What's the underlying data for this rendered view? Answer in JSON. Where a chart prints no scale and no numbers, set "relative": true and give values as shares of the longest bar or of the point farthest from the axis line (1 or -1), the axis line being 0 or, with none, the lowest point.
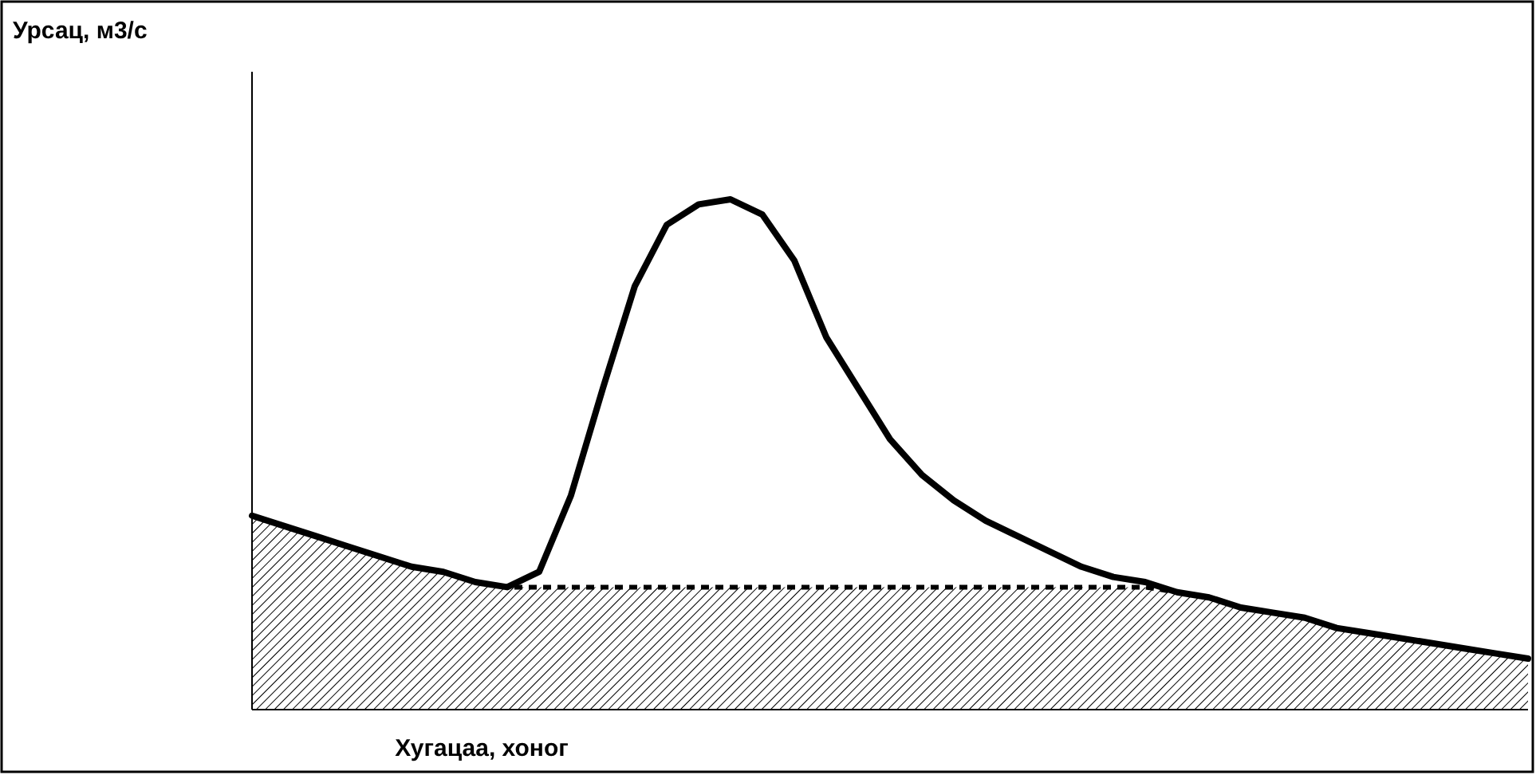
{
  "chart_data": {
    "type": "line",
    "relative": true,
    "xlabel": "Хугацаа, хоног",
    "annotations": [
      "Урсац, м3/с"
    ],
    "grid": false,
    "marker": "none",
    "categories": [
      null,
      null,
      null,
      null,
      null,
      null,
      null,
      null,
      null,
      null,
      null,
      null,
      null,
      null,
      null,
      null,
      null,
      null,
      null,
      null,
      null,
      null,
      null,
      null,
      null,
      null,
      null,
      null,
      null,
      null,
      null,
      null,
      null,
      null,
      null,
      null,
      null,
      null,
      null,
      null,
      null
    ],
    "series": [
      {
        "type": "area",
        "color": "#000000",
        "line_style": "dotted",
        "values": [
          0.38,
          0.36,
          0.34,
          0.32,
          0.3,
          0.28,
          0.27,
          0.25,
          0.24,
          0.24,
          0.24,
          0.24,
          0.24,
          0.24,
          0.24,
          0.24,
          0.24,
          0.24,
          0.24,
          0.24,
          0.24,
          0.24,
          0.24,
          0.24,
          0.24,
          0.24,
          0.24,
          0.24,
          0.24,
          0.23,
          0.22,
          0.2,
          0.19,
          0.18,
          0.16,
          0.15,
          0.14,
          0.13,
          0.12,
          0.11,
          0.1
        ]
      },
      {
        "color": "#000000",
        "line_style": "solid",
        "values": [
          0.38,
          0.36,
          0.34,
          0.32,
          0.3,
          0.28,
          0.27,
          0.25,
          0.24,
          0.27,
          0.42,
          0.63,
          0.83,
          0.95,
          0.99,
          1,
          0.97,
          0.88,
          0.73,
          0.63,
          0.53,
          0.46,
          0.41,
          0.37,
          0.34,
          0.31,
          0.28,
          0.26,
          0.25,
          0.23,
          0.22,
          0.2,
          0.19,
          0.18,
          0.16,
          0.15,
          0.14,
          0.13,
          0.12,
          0.11,
          0.1
        ]
      }
    ]
  }
}
